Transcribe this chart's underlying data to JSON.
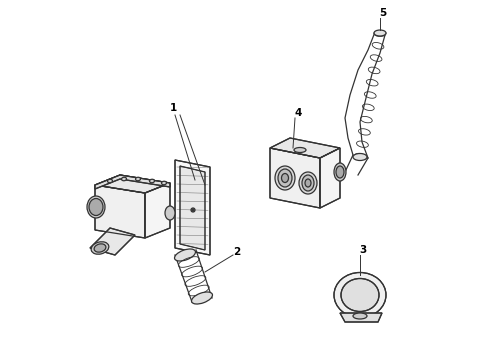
{
  "background_color": "#ffffff",
  "line_color": "#333333",
  "label_color": "#000000",
  "figsize": [
    4.9,
    3.6
  ],
  "dpi": 100
}
